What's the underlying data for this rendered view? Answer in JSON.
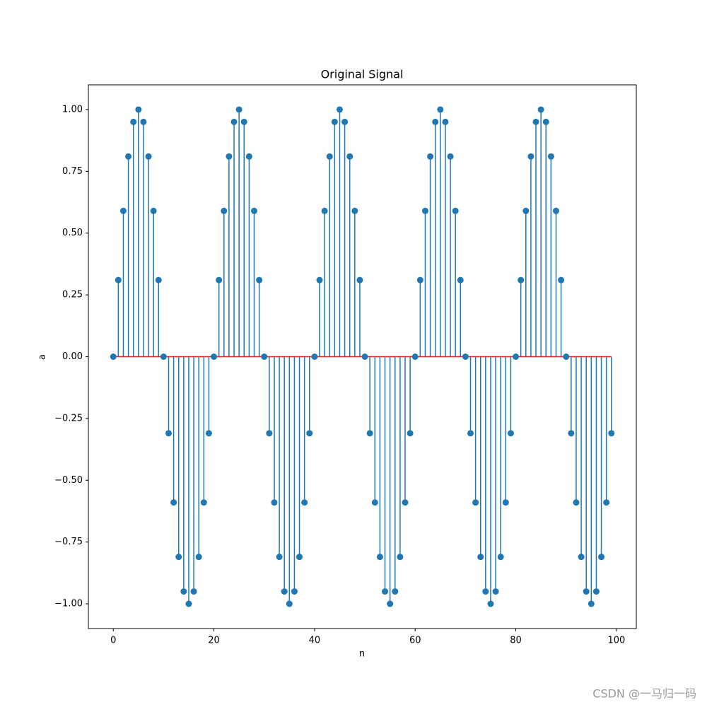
{
  "chart_data": {
    "type": "stem",
    "title": "Original Signal",
    "xlabel": "n",
    "ylabel": "a",
    "x": [
      0,
      1,
      2,
      3,
      4,
      5,
      6,
      7,
      8,
      9,
      10,
      11,
      12,
      13,
      14,
      15,
      16,
      17,
      18,
      19,
      20,
      21,
      22,
      23,
      24,
      25,
      26,
      27,
      28,
      29,
      30,
      31,
      32,
      33,
      34,
      35,
      36,
      37,
      38,
      39,
      40,
      41,
      42,
      43,
      44,
      45,
      46,
      47,
      48,
      49,
      50,
      51,
      52,
      53,
      54,
      55,
      56,
      57,
      58,
      59,
      60,
      61,
      62,
      63,
      64,
      65,
      66,
      67,
      68,
      69,
      70,
      71,
      72,
      73,
      74,
      75,
      76,
      77,
      78,
      79,
      80,
      81,
      82,
      83,
      84,
      85,
      86,
      87,
      88,
      89,
      90,
      91,
      92,
      93,
      94,
      95,
      96,
      97,
      98,
      99
    ],
    "values": [
      0,
      0.31,
      0.59,
      0.81,
      0.95,
      1,
      0.95,
      0.81,
      0.59,
      0.31,
      0,
      -0.31,
      -0.59,
      -0.81,
      -0.95,
      -1,
      -0.95,
      -0.81,
      -0.59,
      -0.31,
      0,
      0.31,
      0.59,
      0.81,
      0.95,
      1,
      0.95,
      0.81,
      0.59,
      0.31,
      0,
      -0.31,
      -0.59,
      -0.81,
      -0.95,
      -1,
      -0.95,
      -0.81,
      -0.59,
      -0.31,
      0,
      0.31,
      0.59,
      0.81,
      0.95,
      1,
      0.95,
      0.81,
      0.59,
      0.31,
      0,
      -0.31,
      -0.59,
      -0.81,
      -0.95,
      -1,
      -0.95,
      -0.81,
      -0.59,
      -0.31,
      0,
      0.31,
      0.59,
      0.81,
      0.95,
      1,
      0.95,
      0.81,
      0.59,
      0.31,
      0,
      -0.31,
      -0.59,
      -0.81,
      -0.95,
      -1,
      -0.95,
      -0.81,
      -0.59,
      -0.31,
      0,
      0.31,
      0.59,
      0.81,
      0.95,
      1,
      0.95,
      0.81,
      0.59,
      0.31,
      0,
      -0.31,
      -0.59,
      -0.81,
      -0.95,
      -1,
      -0.95,
      -0.81,
      -0.59,
      -0.31
    ],
    "color": "#1f77b4",
    "baseline_color": "#d62728",
    "xlim": [
      -4.95,
      103.95
    ],
    "xticks": [
      0,
      20,
      40,
      60,
      80,
      100
    ],
    "ylim": [
      -1.1,
      1.1
    ],
    "yticks": [
      {
        "value": -1,
        "label": "−1.00"
      },
      {
        "value": -0.75,
        "label": "−0.75"
      },
      {
        "value": -0.5,
        "label": "−0.50"
      },
      {
        "value": -0.25,
        "label": "−0.25"
      },
      {
        "value": 0,
        "label": "0.00"
      },
      {
        "value": 0.25,
        "label": "0.25"
      },
      {
        "value": 0.5,
        "label": "0.50"
      },
      {
        "value": 0.75,
        "label": "0.75"
      },
      {
        "value": 1,
        "label": "1.00"
      }
    ],
    "watermark": "CSDN @一马归一码"
  }
}
